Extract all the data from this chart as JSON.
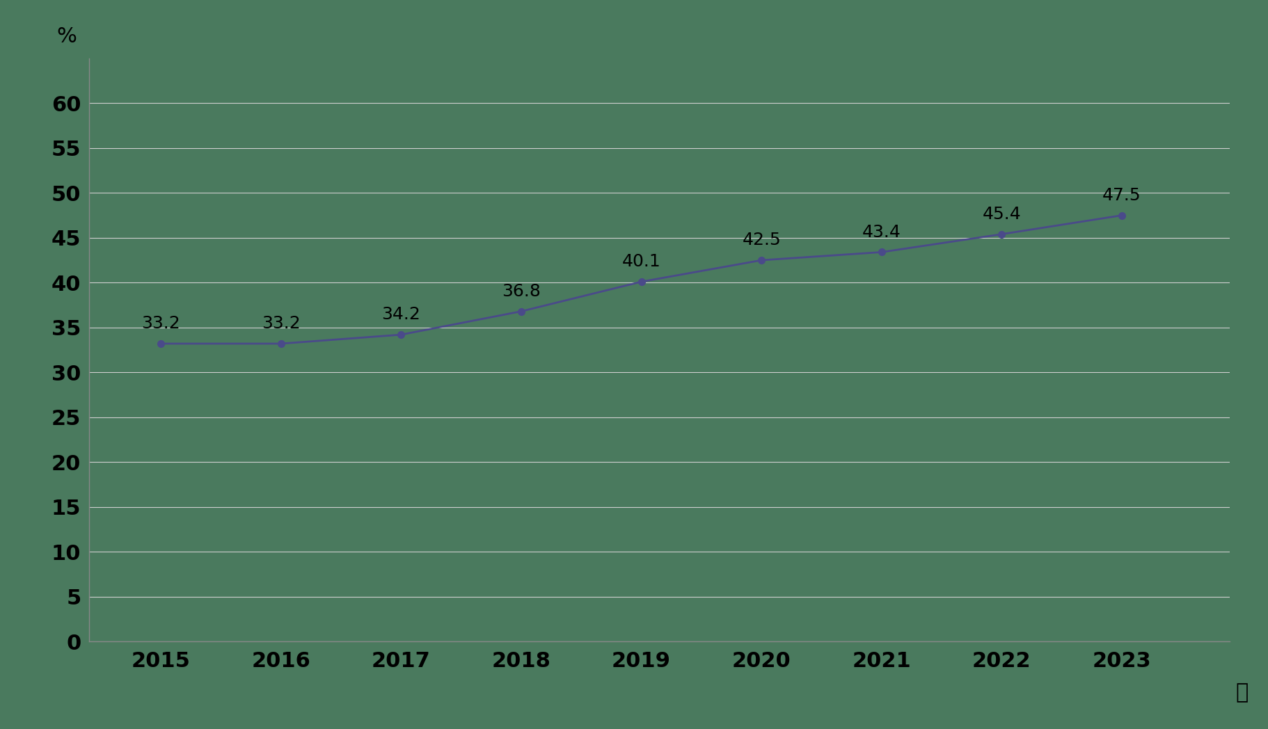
{
  "years": [
    2015,
    2016,
    2017,
    2018,
    2019,
    2020,
    2021,
    2022,
    2023
  ],
  "values": [
    33.2,
    33.2,
    34.2,
    36.8,
    40.1,
    42.5,
    43.4,
    45.4,
    47.5
  ],
  "background_color": "#4a7a5e",
  "line_color": "#4a4a8a",
  "marker_color": "#4a4a8a",
  "grid_color": "#d0d0d0",
  "ylabel": "%",
  "xlabel": "年",
  "ylim": [
    0,
    65
  ],
  "yticks": [
    0,
    5,
    10,
    15,
    20,
    25,
    30,
    35,
    40,
    45,
    50,
    55,
    60
  ],
  "xlim_left": 2014.4,
  "xlim_right": 2023.9,
  "tick_fontsize": 22,
  "annotation_fontsize": 18,
  "axis_label_fontsize": 22,
  "spine_color": "#888888"
}
